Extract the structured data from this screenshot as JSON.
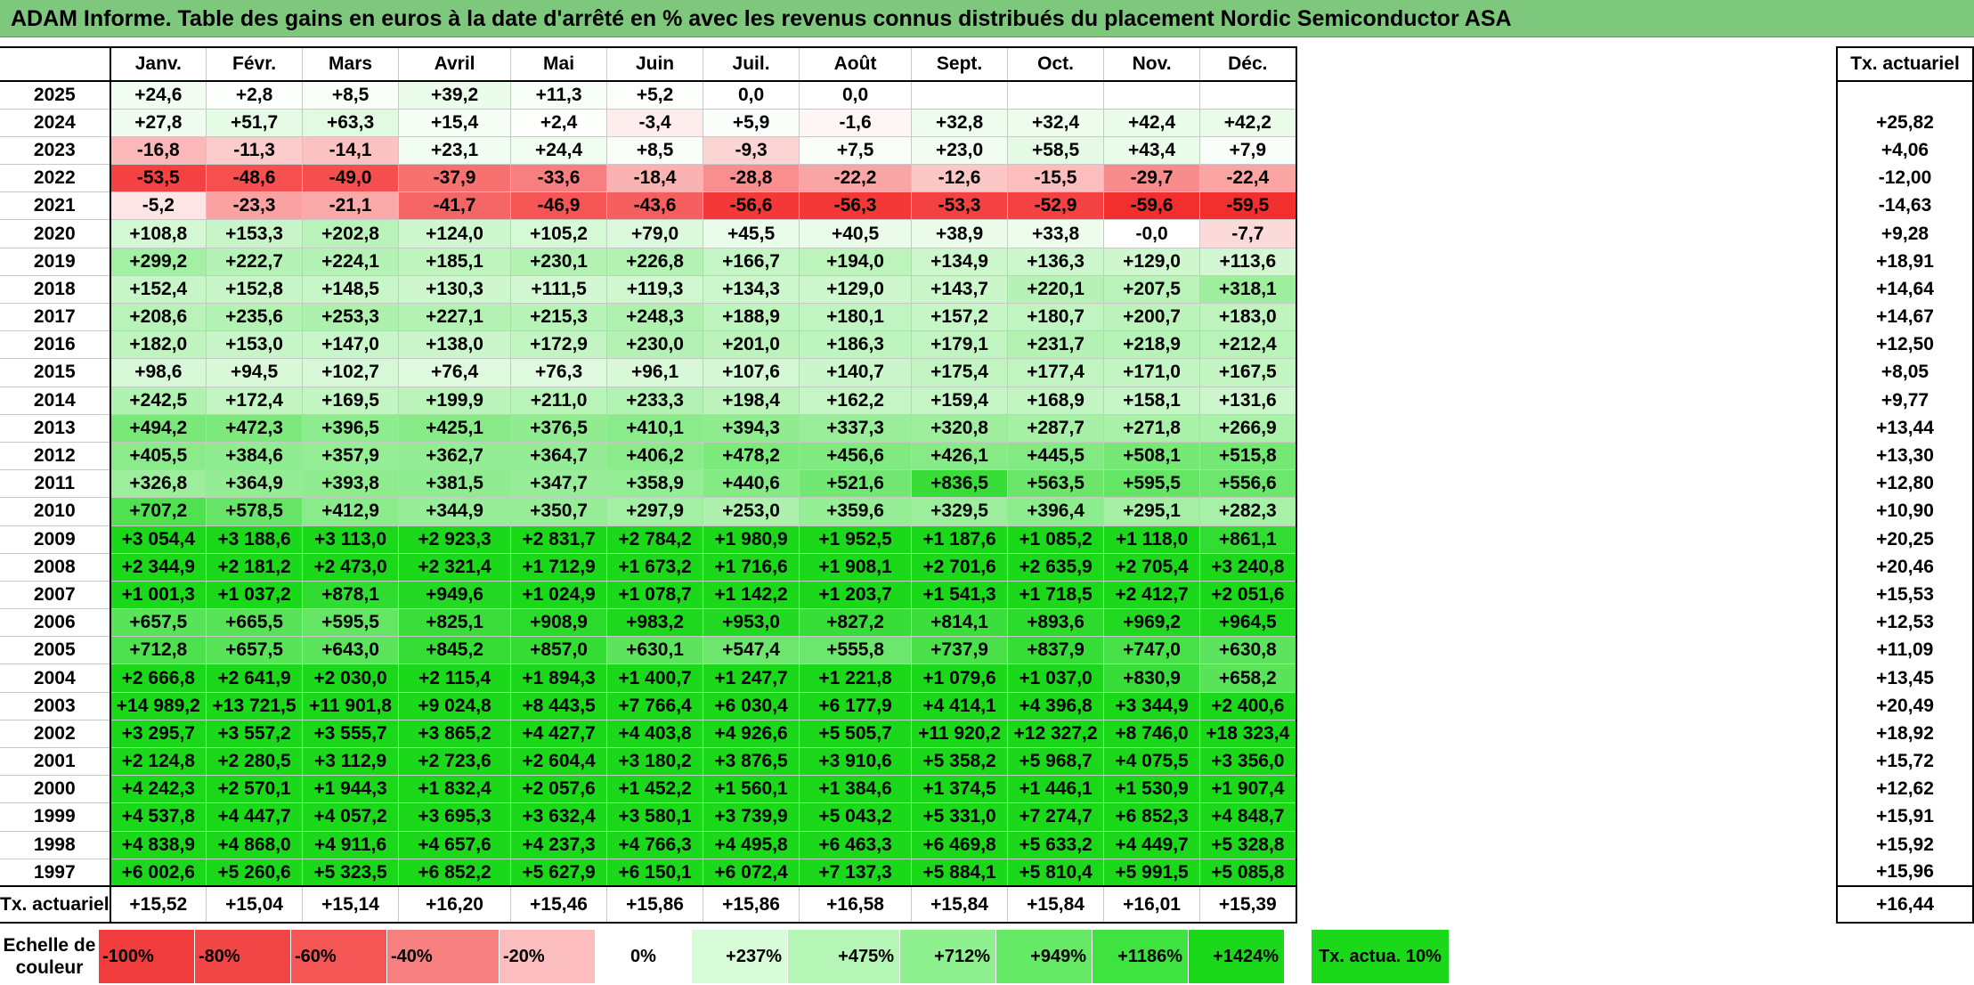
{
  "title": "ADAM Informe. Table des gains en euros à la date d'arrêté en % avec les revenus connus distribués du placement Nordic Semiconductor ASA",
  "months": [
    "Janv.",
    "Févr.",
    "Mars",
    "Avril",
    "Mai",
    "Juin",
    "Juil.",
    "Août",
    "Sept.",
    "Oct.",
    "Nov.",
    "Déc."
  ],
  "actuarial_header": "Tx. actuariel",
  "rows": [
    {
      "year": "2025",
      "values": [
        "+24,6",
        "+2,8",
        "+8,5",
        "+39,2",
        "+11,3",
        "+5,2",
        "0,0",
        "0,0",
        "",
        "",
        "",
        ""
      ],
      "tx": ""
    },
    {
      "year": "2024",
      "values": [
        "+27,8",
        "+51,7",
        "+63,3",
        "+15,4",
        "+2,4",
        "-3,4",
        "+5,9",
        "-1,6",
        "+32,8",
        "+32,4",
        "+42,4",
        "+42,2"
      ],
      "tx": "+25,82"
    },
    {
      "year": "2023",
      "values": [
        "-16,8",
        "-11,3",
        "-14,1",
        "+23,1",
        "+24,4",
        "+8,5",
        "-9,3",
        "+7,5",
        "+23,0",
        "+58,5",
        "+43,4",
        "+7,9"
      ],
      "tx": "+4,06"
    },
    {
      "year": "2022",
      "values": [
        "-53,5",
        "-48,6",
        "-49,0",
        "-37,9",
        "-33,6",
        "-18,4",
        "-28,8",
        "-22,2",
        "-12,6",
        "-15,5",
        "-29,7",
        "-22,4"
      ],
      "tx": "-12,00"
    },
    {
      "year": "2021",
      "values": [
        "-5,2",
        "-23,3",
        "-21,1",
        "-41,7",
        "-46,9",
        "-43,6",
        "-56,6",
        "-56,3",
        "-53,3",
        "-52,9",
        "-59,6",
        "-59,5"
      ],
      "tx": "-14,63"
    },
    {
      "year": "2020",
      "values": [
        "+108,8",
        "+153,3",
        "+202,8",
        "+124,0",
        "+105,2",
        "+79,0",
        "+45,5",
        "+40,5",
        "+38,9",
        "+33,8",
        "-0,0",
        "-7,7"
      ],
      "tx": "+9,28"
    },
    {
      "year": "2019",
      "values": [
        "+299,2",
        "+222,7",
        "+224,1",
        "+185,1",
        "+230,1",
        "+226,8",
        "+166,7",
        "+194,0",
        "+134,9",
        "+136,3",
        "+129,0",
        "+113,6"
      ],
      "tx": "+18,91"
    },
    {
      "year": "2018",
      "values": [
        "+152,4",
        "+152,8",
        "+148,5",
        "+130,3",
        "+111,5",
        "+119,3",
        "+134,3",
        "+129,0",
        "+143,7",
        "+220,1",
        "+207,5",
        "+318,1"
      ],
      "tx": "+14,64"
    },
    {
      "year": "2017",
      "values": [
        "+208,6",
        "+235,6",
        "+253,3",
        "+227,1",
        "+215,3",
        "+248,3",
        "+188,9",
        "+180,1",
        "+157,2",
        "+180,7",
        "+200,7",
        "+183,0"
      ],
      "tx": "+14,67"
    },
    {
      "year": "2016",
      "values": [
        "+182,0",
        "+153,0",
        "+147,0",
        "+138,0",
        "+172,9",
        "+230,0",
        "+201,0",
        "+186,3",
        "+179,1",
        "+231,7",
        "+218,9",
        "+212,4"
      ],
      "tx": "+12,50"
    },
    {
      "year": "2015",
      "values": [
        "+98,6",
        "+94,5",
        "+102,7",
        "+76,4",
        "+76,3",
        "+96,1",
        "+107,6",
        "+140,7",
        "+175,4",
        "+177,4",
        "+171,0",
        "+167,5"
      ],
      "tx": "+8,05"
    },
    {
      "year": "2014",
      "values": [
        "+242,5",
        "+172,4",
        "+169,5",
        "+199,9",
        "+211,0",
        "+233,3",
        "+198,4",
        "+162,2",
        "+159,4",
        "+168,9",
        "+158,1",
        "+131,6"
      ],
      "tx": "+9,77"
    },
    {
      "year": "2013",
      "values": [
        "+494,2",
        "+472,3",
        "+396,5",
        "+425,1",
        "+376,5",
        "+410,1",
        "+394,3",
        "+337,3",
        "+320,8",
        "+287,7",
        "+271,8",
        "+266,9"
      ],
      "tx": "+13,44"
    },
    {
      "year": "2012",
      "values": [
        "+405,5",
        "+384,6",
        "+357,9",
        "+362,7",
        "+364,7",
        "+406,2",
        "+478,2",
        "+456,6",
        "+426,1",
        "+445,5",
        "+508,1",
        "+515,8"
      ],
      "tx": "+13,30"
    },
    {
      "year": "2011",
      "values": [
        "+326,8",
        "+364,9",
        "+393,8",
        "+381,5",
        "+347,7",
        "+358,9",
        "+440,6",
        "+521,6",
        "+836,5",
        "+563,5",
        "+595,5",
        "+556,6"
      ],
      "tx": "+12,80"
    },
    {
      "year": "2010",
      "values": [
        "+707,2",
        "+578,5",
        "+412,9",
        "+344,9",
        "+350,7",
        "+297,9",
        "+253,0",
        "+359,6",
        "+329,5",
        "+396,4",
        "+295,1",
        "+282,3"
      ],
      "tx": "+10,90"
    },
    {
      "year": "2009",
      "values": [
        "+3 054,4",
        "+3 188,6",
        "+3 113,0",
        "+2 923,3",
        "+2 831,7",
        "+2 784,2",
        "+1 980,9",
        "+1 952,5",
        "+1 187,6",
        "+1 085,2",
        "+1 118,0",
        "+861,1"
      ],
      "tx": "+20,25"
    },
    {
      "year": "2008",
      "values": [
        "+2 344,9",
        "+2 181,2",
        "+2 473,0",
        "+2 321,4",
        "+1 712,9",
        "+1 673,2",
        "+1 716,6",
        "+1 908,1",
        "+2 701,6",
        "+2 635,9",
        "+2 705,4",
        "+3 240,8"
      ],
      "tx": "+20,46"
    },
    {
      "year": "2007",
      "values": [
        "+1 001,3",
        "+1 037,2",
        "+878,1",
        "+949,6",
        "+1 024,9",
        "+1 078,7",
        "+1 142,2",
        "+1 203,7",
        "+1 541,3",
        "+1 718,5",
        "+2 412,7",
        "+2 051,6"
      ],
      "tx": "+15,53"
    },
    {
      "year": "2006",
      "values": [
        "+657,5",
        "+665,5",
        "+595,5",
        "+825,1",
        "+908,9",
        "+983,2",
        "+953,0",
        "+827,2",
        "+814,1",
        "+893,6",
        "+969,2",
        "+964,5"
      ],
      "tx": "+12,53"
    },
    {
      "year": "2005",
      "values": [
        "+712,8",
        "+657,5",
        "+643,0",
        "+845,2",
        "+857,0",
        "+630,1",
        "+547,4",
        "+555,8",
        "+737,9",
        "+837,9",
        "+747,0",
        "+630,8"
      ],
      "tx": "+11,09"
    },
    {
      "year": "2004",
      "values": [
        "+2 666,8",
        "+2 641,9",
        "+2 030,0",
        "+2 115,4",
        "+1 894,3",
        "+1 400,7",
        "+1 247,7",
        "+1 221,8",
        "+1 079,6",
        "+1 037,0",
        "+830,9",
        "+658,2"
      ],
      "tx": "+13,45"
    },
    {
      "year": "2003",
      "values": [
        "+14 989,2",
        "+13 721,5",
        "+11 901,8",
        "+9 024,8",
        "+8 443,5",
        "+7 766,4",
        "+6 030,4",
        "+6 177,9",
        "+4 414,1",
        "+4 396,8",
        "+3 344,9",
        "+2 400,6"
      ],
      "tx": "+20,49"
    },
    {
      "year": "2002",
      "values": [
        "+3 295,7",
        "+3 557,2",
        "+3 555,7",
        "+3 865,2",
        "+4 427,7",
        "+4 403,8",
        "+4 926,6",
        "+5 505,7",
        "+11 920,2",
        "+12 327,2",
        "+8 746,0",
        "+18 323,4"
      ],
      "tx": "+18,92"
    },
    {
      "year": "2001",
      "values": [
        "+2 124,8",
        "+2 280,5",
        "+3 112,9",
        "+2 723,6",
        "+2 604,4",
        "+3 180,2",
        "+3 876,5",
        "+3 910,6",
        "+5 358,2",
        "+5 968,7",
        "+4 075,5",
        "+3 356,0"
      ],
      "tx": "+15,72"
    },
    {
      "year": "2000",
      "values": [
        "+4 242,3",
        "+2 570,1",
        "+1 944,3",
        "+1 832,4",
        "+2 057,6",
        "+1 452,2",
        "+1 560,1",
        "+1 384,6",
        "+1 374,5",
        "+1 446,1",
        "+1 530,9",
        "+1 907,4"
      ],
      "tx": "+12,62"
    },
    {
      "year": "1999",
      "values": [
        "+4 537,8",
        "+4 447,7",
        "+4 057,2",
        "+3 695,3",
        "+3 632,4",
        "+3 580,1",
        "+3 739,9",
        "+5 043,2",
        "+5 331,0",
        "+7 274,7",
        "+6 852,3",
        "+4 848,7"
      ],
      "tx": "+15,91"
    },
    {
      "year": "1998",
      "values": [
        "+4 838,9",
        "+4 868,0",
        "+4 911,6",
        "+4 657,6",
        "+4 237,3",
        "+4 766,3",
        "+4 495,8",
        "+6 463,3",
        "+6 469,8",
        "+5 633,2",
        "+4 449,7",
        "+5 328,8"
      ],
      "tx": "+15,92"
    },
    {
      "year": "1997",
      "values": [
        "+6 002,6",
        "+5 260,6",
        "+5 323,5",
        "+6 852,2",
        "+5 627,9",
        "+6 150,1",
        "+6 072,4",
        "+7 137,3",
        "+5 884,1",
        "+5 810,4",
        "+5 991,5",
        "+5 085,8"
      ],
      "tx": "+15,96"
    }
  ],
  "annual": {
    "label": "Tx. actuariel",
    "values": [
      "+15,52",
      "+15,04",
      "+15,14",
      "+16,20",
      "+15,46",
      "+15,86",
      "+15,86",
      "+16,58",
      "+15,84",
      "+15,84",
      "+16,01",
      "+15,39"
    ],
    "overall": "+16,44"
  },
  "legend": {
    "label": "Echelle de couleur",
    "steps": [
      {
        "text": "-100%",
        "color": "#f03c3c"
      },
      {
        "text": "-80%",
        "color": "#f24646"
      },
      {
        "text": "-60%",
        "color": "#f45656"
      },
      {
        "text": "-40%",
        "color": "#f77f7f"
      },
      {
        "text": "-20%",
        "color": "#fbbdbd"
      },
      {
        "text": "0%",
        "color": "#ffffff"
      },
      {
        "text": "+237%",
        "color": "#d8fbd8"
      },
      {
        "text": "+475%",
        "color": "#b5f5b5"
      },
      {
        "text": "+712%",
        "color": "#8ff08f"
      },
      {
        "text": "+949%",
        "color": "#66ea66"
      },
      {
        "text": "+1186%",
        "color": "#3fe33f"
      },
      {
        "text": "+1424%",
        "color": "#1bd81b"
      }
    ],
    "tx_label": "Tx. actua. 10%",
    "tx_color": "#1bd81b"
  }
}
